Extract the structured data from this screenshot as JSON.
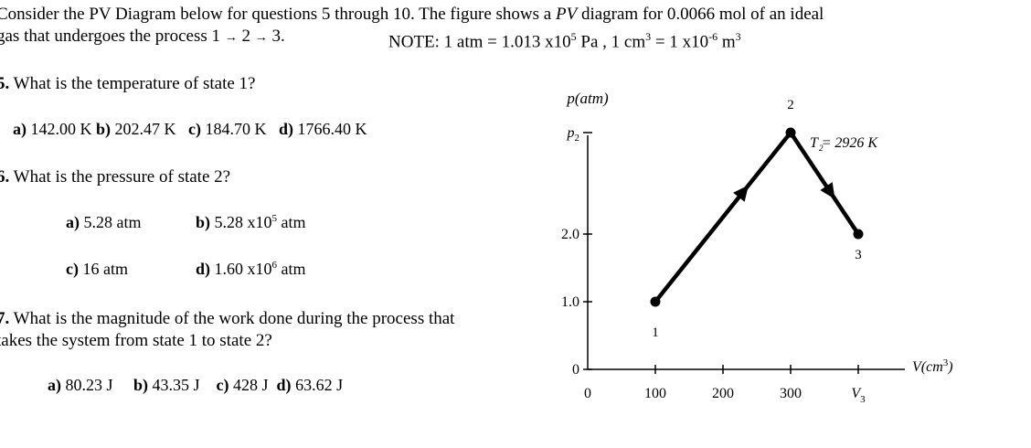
{
  "intro": {
    "line1_a": "Consider the PV Diagram below for questions 5 through 10.  The figure shows a ",
    "line1_italic": "PV",
    "line1_b": " diagram for 0.0066 mol of an ideal",
    "line2_a": "gas that undergoes the process 1 ",
    "arrow": "→",
    "two": " 2 ",
    "line2_c": " 3.",
    "note_a": "NOTE: 1 atm = 1.013 x10",
    "note_exp5": "5",
    "note_b": " Pa ,   1 cm",
    "note_exp3": "3",
    "note_c": " = 1 x10",
    "note_expneg6": "-6",
    "note_d": " m",
    "note_exp3b": "3"
  },
  "q5": {
    "number": "5.",
    "text": " What is the temperature of state 1?",
    "a_label": "a)",
    "a_val": " 142.00 K ",
    "b_label": "b)",
    "b_val": " 202.47 K ",
    "c_label": "c)",
    "c_val": " 184.70 K ",
    "d_label": "d)",
    "d_val": " 1766.40 K"
  },
  "q6": {
    "number": "6.",
    "text": " What is the pressure of state 2?",
    "a_label": "a)",
    "a_val": " 5.28 atm",
    "b_label": "b)",
    "b_val": " 5.28 x10",
    "b_exp": "5",
    "b_unit": " atm",
    "c_label": "c)",
    "c_val": " 16 atm",
    "d_label": "d)",
    "d_val": " 1.60 x10",
    "d_exp": "6",
    "d_unit": " atm"
  },
  "q7": {
    "number": "7.",
    "line1": " What is the magnitude of the work done during the process that",
    "line2": "takes the system from state 1 to state 2?",
    "a_label": "a)",
    "a_val": " 80.23 J",
    "b_label": "b)",
    "b_val": " 43.35 J",
    "c_label": "c)",
    "c_val": " 428 J",
    "d_label": "d)",
    "d_val": " 63.62 J"
  },
  "diagram": {
    "y_axis_label": "p(atm)",
    "x_axis_label_main": "V(cm",
    "x_axis_label_exp": "3",
    "x_axis_label_close": ")",
    "y_ticks": [
      {
        "label": "0",
        "value": 0
      },
      {
        "label": "1.0",
        "value": 1.0
      },
      {
        "label": "2.0",
        "value": 2.0
      },
      {
        "label": "p",
        "sub": "2",
        "value": 3.5
      }
    ],
    "x_ticks": [
      {
        "label": "0",
        "value": 0
      },
      {
        "label": "100",
        "value": 100
      },
      {
        "label": "200",
        "value": 200
      },
      {
        "label": "300",
        "value": 300
      },
      {
        "label": "V",
        "sub": "3",
        "value": 400
      }
    ],
    "states": [
      {
        "label": "1",
        "v": 100,
        "p": 1.0
      },
      {
        "label": "2",
        "v": 300,
        "p": 3.5
      },
      {
        "label": "3",
        "v": 400,
        "p": 2.0
      }
    ],
    "t2_label": "T  = 2926 K",
    "t2_sub": "2",
    "line_color": "#000000"
  }
}
